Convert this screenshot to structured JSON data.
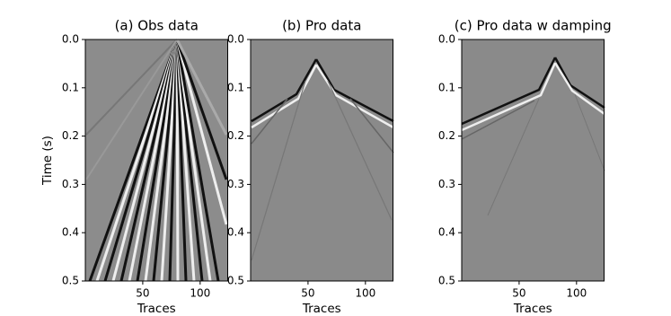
{
  "chart_data": [
    {
      "type": "image",
      "title": "(a) Obs data",
      "xlabel": "Traces",
      "ylabel": "Time (s)",
      "xlim": [
        0,
        124
      ],
      "xticks": [
        50,
        100
      ],
      "ylim": [
        0.5,
        0
      ],
      "yticks": [
        {
          "value": 0,
          "label": "0.0"
        },
        {
          "value": 0.1,
          "label": "0.1"
        },
        {
          "value": 0.2,
          "label": "0.2"
        },
        {
          "value": 0.3,
          "label": "0.3"
        },
        {
          "value": 0.4,
          "label": "0.4"
        },
        {
          "value": 0.5,
          "label": "0.5"
        }
      ]
    },
    {
      "type": "image",
      "title": "(b) Pro data",
      "xlabel": "Traces",
      "xlim": [
        0,
        124
      ],
      "xticks": [
        50,
        100
      ],
      "ylim": [
        0.5,
        0
      ],
      "yticks": [
        {
          "value": 0,
          "label": "0.0"
        },
        {
          "value": 0.1,
          "label": "0.1"
        },
        {
          "value": 0.2,
          "label": "0.2"
        },
        {
          "value": 0.3,
          "label": "0.3"
        },
        {
          "value": 0.4,
          "label": "0.4"
        },
        {
          "value": 0.5,
          "label": "0.5"
        }
      ]
    },
    {
      "type": "image",
      "title": "(c) Pro data w damping",
      "xlabel": "Traces",
      "xlim": [
        0,
        124
      ],
      "xticks": [
        50,
        100
      ],
      "ylim": [
        0.5,
        0
      ],
      "yticks": [
        {
          "value": 0,
          "label": "0.0"
        },
        {
          "value": 0.1,
          "label": "0.1"
        },
        {
          "value": 0.2,
          "label": "0.2"
        },
        {
          "value": 0.3,
          "label": "0.3"
        },
        {
          "value": 0.4,
          "label": "0.4"
        },
        {
          "value": 0.5,
          "label": "0.5"
        }
      ]
    }
  ]
}
